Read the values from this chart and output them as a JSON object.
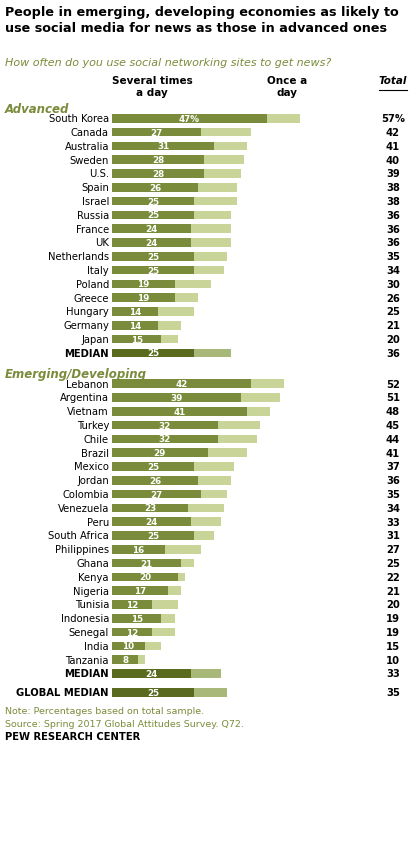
{
  "title": "People in emerging, developing economies as likely to\nuse social media for news as those in advanced ones",
  "subtitle": "How often do you use social networking sites to get news?",
  "col_header_several": "Several times\na day",
  "col_header_once": "Once a\nday",
  "col_header_total": "Total",
  "advanced_label": "Advanced",
  "emerging_label": "Emerging/Developing",
  "global_median_label": "GLOBAL MEDIAN",
  "note": "Note: Percentages based on total sample.\nSource: Spring 2017 Global Attitudes Survey. Q72.",
  "pew": "PEW RESEARCH CENTER",
  "advanced": [
    {
      "country": "South Korea",
      "several": 47,
      "total": 57,
      "is_median": false
    },
    {
      "country": "Canada",
      "several": 27,
      "total": 42,
      "is_median": false
    },
    {
      "country": "Australia",
      "several": 31,
      "total": 41,
      "is_median": false
    },
    {
      "country": "Sweden",
      "several": 28,
      "total": 40,
      "is_median": false
    },
    {
      "country": "U.S.",
      "several": 28,
      "total": 39,
      "is_median": false
    },
    {
      "country": "Spain",
      "several": 26,
      "total": 38,
      "is_median": false
    },
    {
      "country": "Israel",
      "several": 25,
      "total": 38,
      "is_median": false
    },
    {
      "country": "Russia",
      "several": 25,
      "total": 36,
      "is_median": false
    },
    {
      "country": "France",
      "several": 24,
      "total": 36,
      "is_median": false
    },
    {
      "country": "UK",
      "several": 24,
      "total": 36,
      "is_median": false
    },
    {
      "country": "Netherlands",
      "several": 25,
      "total": 35,
      "is_median": false
    },
    {
      "country": "Italy",
      "several": 25,
      "total": 34,
      "is_median": false
    },
    {
      "country": "Poland",
      "several": 19,
      "total": 30,
      "is_median": false
    },
    {
      "country": "Greece",
      "several": 19,
      "total": 26,
      "is_median": false
    },
    {
      "country": "Hungary",
      "several": 14,
      "total": 25,
      "is_median": false
    },
    {
      "country": "Germany",
      "several": 14,
      "total": 21,
      "is_median": false
    },
    {
      "country": "Japan",
      "several": 15,
      "total": 20,
      "is_median": false
    },
    {
      "country": "MEDIAN",
      "several": 25,
      "total": 36,
      "is_median": true
    }
  ],
  "emerging": [
    {
      "country": "Lebanon",
      "several": 42,
      "total": 52,
      "is_median": false
    },
    {
      "country": "Argentina",
      "several": 39,
      "total": 51,
      "is_median": false
    },
    {
      "country": "Vietnam",
      "several": 41,
      "total": 48,
      "is_median": false
    },
    {
      "country": "Turkey",
      "several": 32,
      "total": 45,
      "is_median": false
    },
    {
      "country": "Chile",
      "several": 32,
      "total": 44,
      "is_median": false
    },
    {
      "country": "Brazil",
      "several": 29,
      "total": 41,
      "is_median": false
    },
    {
      "country": "Mexico",
      "several": 25,
      "total": 37,
      "is_median": false
    },
    {
      "country": "Jordan",
      "several": 26,
      "total": 36,
      "is_median": false
    },
    {
      "country": "Colombia",
      "several": 27,
      "total": 35,
      "is_median": false
    },
    {
      "country": "Venezuela",
      "several": 23,
      "total": 34,
      "is_median": false
    },
    {
      "country": "Peru",
      "several": 24,
      "total": 33,
      "is_median": false
    },
    {
      "country": "South Africa",
      "several": 25,
      "total": 31,
      "is_median": false
    },
    {
      "country": "Philippines",
      "several": 16,
      "total": 27,
      "is_median": false
    },
    {
      "country": "Ghana",
      "several": 21,
      "total": 25,
      "is_median": false
    },
    {
      "country": "Kenya",
      "several": 20,
      "total": 22,
      "is_median": false
    },
    {
      "country": "Nigeria",
      "several": 17,
      "total": 21,
      "is_median": false
    },
    {
      "country": "Tunisia",
      "several": 12,
      "total": 20,
      "is_median": false
    },
    {
      "country": "Indonesia",
      "several": 15,
      "total": 19,
      "is_median": false
    },
    {
      "country": "Senegal",
      "several": 12,
      "total": 19,
      "is_median": false
    },
    {
      "country": "India",
      "several": 10,
      "total": 15,
      "is_median": false
    },
    {
      "country": "Tanzania",
      "several": 8,
      "total": 10,
      "is_median": false
    },
    {
      "country": "MEDIAN",
      "several": 24,
      "total": 33,
      "is_median": true
    }
  ],
  "global_median": {
    "several": 25,
    "total": 35
  },
  "color_several_normal": "#7a8c3b",
  "color_several_median": "#5a6b20",
  "color_once_normal": "#c8d498",
  "color_once_median": "#a8b878",
  "color_title": "#000000",
  "color_subtitle": "#7a8c3b",
  "color_section_label": "#7a8c3b",
  "color_note": "#7a8c3b"
}
